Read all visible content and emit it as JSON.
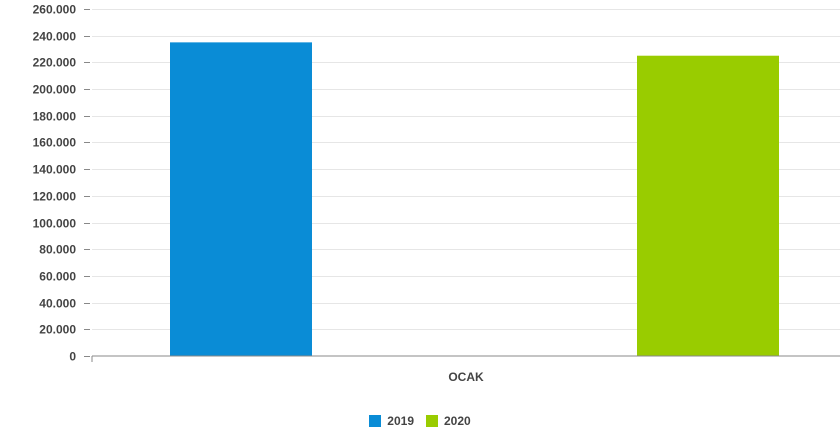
{
  "chart_data": {
    "type": "bar",
    "categories": [
      "OCAK"
    ],
    "series": [
      {
        "name": "2019",
        "values": [
          235000
        ],
        "color": "#0a8cd6"
      },
      {
        "name": "2020",
        "values": [
          225000
        ],
        "color": "#99cc00"
      }
    ],
    "ylim": [
      0,
      260000
    ],
    "yticks": [
      "0",
      "20.000",
      "40.000",
      "60.000",
      "80.000",
      "100.000",
      "120.000",
      "140.000",
      "160.000",
      "180.000",
      "200.000",
      "220.000",
      "240.000",
      "260.000"
    ],
    "grid": true,
    "legend_position": "bottom-center"
  }
}
